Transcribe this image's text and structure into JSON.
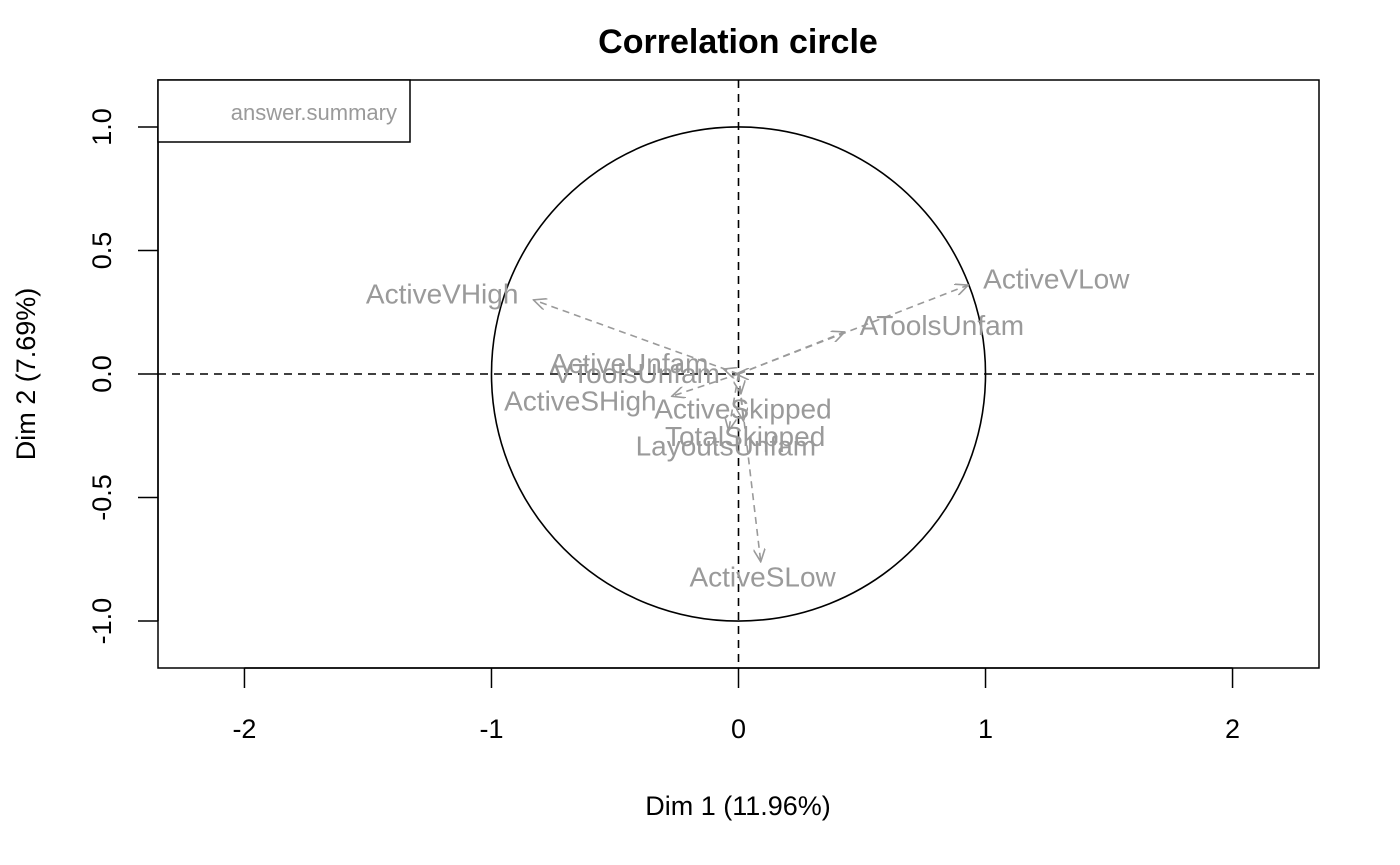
{
  "chart_data": {
    "type": "scatter",
    "title": "Correlation circle",
    "xlabel": "Dim 1 (11.96%)",
    "ylabel": "Dim 2 (7.69%)",
    "xlim": [
      -2.35,
      2.35
    ],
    "ylim": [
      -1.19,
      1.19
    ],
    "x_ticks": [
      -2,
      -1,
      0,
      1,
      2
    ],
    "x_tick_labels": [
      "-2",
      "-1",
      "0",
      "1",
      "2"
    ],
    "y_ticks": [
      -1.0,
      -0.5,
      0.0,
      0.5,
      1.0
    ],
    "y_tick_labels": [
      "-1.0",
      "-0.5",
      "0.0",
      "0.5",
      "1.0"
    ],
    "grid": false,
    "reference_lines": {
      "x": 0,
      "y": 0,
      "style": "dashed"
    },
    "unit_circle": true,
    "legend": {
      "placement": "top-left",
      "entries": [
        "answer.summary"
      ]
    },
    "arrow_color": "#9a9a9a",
    "axis_color": "#000000",
    "variables": [
      {
        "label": "ActiveVHigh",
        "x": -0.83,
        "y": 0.3
      },
      {
        "label": "ActiveVLow",
        "x": 0.93,
        "y": 0.36
      },
      {
        "label": "AToolsUnfam",
        "x": 0.43,
        "y": 0.17
      },
      {
        "label": "ActiveUnfam",
        "x": -0.06,
        "y": 0.02
      },
      {
        "label": "VToolsUnfam",
        "x": -0.01,
        "y": 0.0
      },
      {
        "label": "ActiveSHigh",
        "x": -0.27,
        "y": -0.09
      },
      {
        "label": "ActiveSkipped",
        "x": 0.01,
        "y": -0.08
      },
      {
        "label": "TotalSkipped",
        "x": 0.02,
        "y": -0.19
      },
      {
        "label": "LayoutsUnfam",
        "x": -0.04,
        "y": -0.23
      },
      {
        "label": "ActiveSLow",
        "x": 0.09,
        "y": -0.76
      }
    ]
  }
}
